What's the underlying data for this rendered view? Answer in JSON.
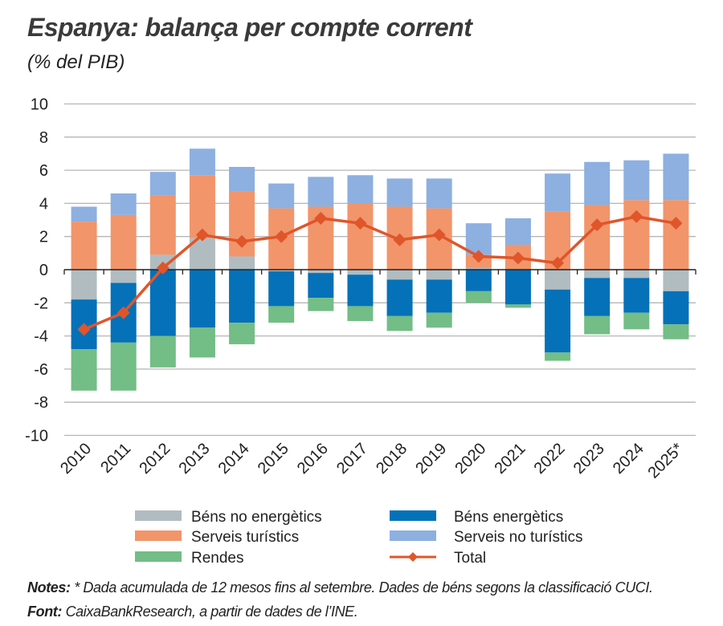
{
  "title": "Espanya: balança per compte corrent",
  "subtitle": "(% del PIB)",
  "notes": {
    "notes_label": "Notes:",
    "notes_text": " * Dada acumulada de 12 mesos fins al setembre. Dades de béns segons la classificació CUCI.",
    "source_label": "Font:",
    "source_text": " CaixaBankResearch, a partir de dades de l’INE."
  },
  "chart_data": {
    "type": "bar",
    "stacked": true,
    "categories": [
      "2010",
      "2011",
      "2012",
      "2013",
      "2014",
      "2015",
      "2016",
      "2017",
      "2018",
      "2019",
      "2020",
      "2021",
      "2022",
      "2023",
      "2024",
      "2025*"
    ],
    "ylim": [
      -10,
      10
    ],
    "yticks": [
      10,
      8,
      6,
      4,
      2,
      0,
      -2,
      -4,
      -6,
      -8,
      -10
    ],
    "grid": true,
    "legend_position": "bottom",
    "series": [
      {
        "name": "Béns no energètics",
        "type": "bar",
        "color": "#b1bcc1",
        "values": [
          -1.8,
          -0.8,
          0.9,
          1.9,
          0.8,
          -0.1,
          -0.2,
          -0.3,
          -0.6,
          -0.6,
          0.1,
          0.0,
          -1.2,
          -0.5,
          -0.5,
          -1.3
        ]
      },
      {
        "name": "Béns energètics",
        "type": "bar",
        "color": "#0571b8",
        "values": [
          -3.0,
          -3.6,
          -4.0,
          -3.5,
          -3.2,
          -2.1,
          -1.5,
          -1.9,
          -2.2,
          -2.0,
          -1.3,
          -2.1,
          -3.8,
          -2.3,
          -2.1,
          -2.0
        ]
      },
      {
        "name": "Serveis turístics",
        "type": "bar",
        "color": "#f2956a",
        "values": [
          2.9,
          3.3,
          3.6,
          3.8,
          3.9,
          3.7,
          3.8,
          4.0,
          3.8,
          3.7,
          0.8,
          1.5,
          3.5,
          3.9,
          4.2,
          4.2
        ]
      },
      {
        "name": "Serveis no turístics",
        "type": "bar",
        "color": "#8db0e0",
        "values": [
          0.9,
          1.3,
          1.4,
          1.6,
          1.5,
          1.5,
          1.8,
          1.7,
          1.7,
          1.8,
          1.9,
          1.6,
          2.3,
          2.6,
          2.4,
          2.8
        ]
      },
      {
        "name": "Rendes",
        "type": "bar",
        "color": "#73bd86",
        "values": [
          -2.5,
          -2.9,
          -1.9,
          -1.8,
          -1.3,
          -1.0,
          -0.8,
          -0.9,
          -0.9,
          -0.9,
          -0.7,
          -0.2,
          -0.5,
          -1.1,
          -1.0,
          -0.9
        ]
      },
      {
        "name": "Total",
        "type": "line",
        "color": "#e0552a",
        "values": [
          -3.6,
          -2.6,
          0.1,
          2.1,
          1.7,
          2.0,
          3.1,
          2.8,
          1.8,
          2.1,
          0.8,
          0.7,
          0.4,
          2.7,
          3.2,
          2.8
        ]
      }
    ],
    "legend_order": [
      0,
      1,
      2,
      3,
      4,
      5
    ]
  }
}
